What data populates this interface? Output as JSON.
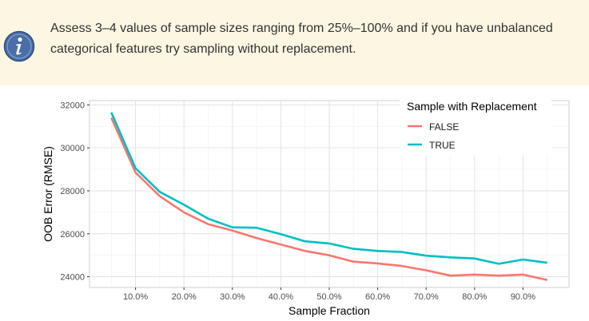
{
  "tip": {
    "icon": "info-icon",
    "text": "Assess 3–4 values of sample sizes ranging from 25%–100% and if you have unbalanced categorical features try sampling without replacement."
  },
  "chart_data": {
    "type": "line",
    "xlabel": "Sample Fraction",
    "ylabel": "OOB Error (RMSE)",
    "xlim": [
      0.005,
      0.995
    ],
    "ylim": [
      23500,
      32200
    ],
    "x_ticks": [
      0.1,
      0.2,
      0.3,
      0.4,
      0.5,
      0.6,
      0.7,
      0.8,
      0.9
    ],
    "x_tick_labels": [
      "10.0%",
      "20.0%",
      "30.0%",
      "40.0%",
      "50.0%",
      "60.0%",
      "70.0%",
      "80.0%",
      "90.0%"
    ],
    "y_ticks": [
      24000,
      26000,
      28000,
      30000,
      32000
    ],
    "y_tick_labels": [
      "24000",
      "26000",
      "28000",
      "30000",
      "32000"
    ],
    "grid": true,
    "legend": {
      "title": "Sample with Replacement",
      "placement": "top-right"
    },
    "x": [
      0.05,
      0.1,
      0.15,
      0.2,
      0.25,
      0.3,
      0.35,
      0.4,
      0.45,
      0.5,
      0.55,
      0.6,
      0.65,
      0.7,
      0.75,
      0.8,
      0.85,
      0.9,
      0.95
    ],
    "series": [
      {
        "name": "FALSE",
        "color": "#f8766d",
        "values": [
          31400,
          28850,
          27750,
          27000,
          26450,
          26150,
          25800,
          25500,
          25200,
          25000,
          24700,
          24620,
          24500,
          24300,
          24050,
          24100,
          24050,
          24100,
          23850
        ]
      },
      {
        "name": "TRUE",
        "color": "#00bfc4",
        "values": [
          31650,
          29050,
          27950,
          27350,
          26700,
          26300,
          26280,
          25980,
          25650,
          25550,
          25300,
          25200,
          25150,
          24980,
          24900,
          24850,
          24600,
          24800,
          24650
        ]
      }
    ]
  }
}
